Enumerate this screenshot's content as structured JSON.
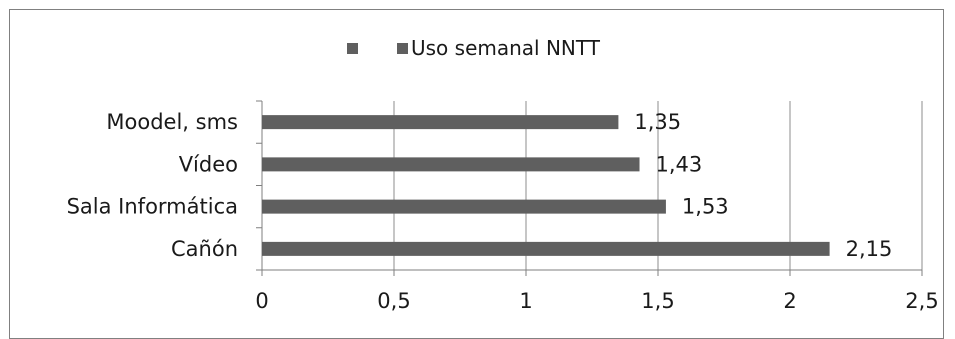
{
  "chart_data": {
    "type": "bar",
    "orientation": "horizontal",
    "categories": [
      "Moodel, sms",
      "Vídeo",
      "Sala Informática",
      "Cañón"
    ],
    "series": [
      {
        "name": "Uso semanal NNTT",
        "values": [
          1.35,
          1.43,
          1.53,
          2.15
        ],
        "value_labels": [
          "1,35",
          "1,43",
          "1,53",
          "2,15"
        ]
      }
    ],
    "xlim": [
      0,
      2.5
    ],
    "x_ticks": [
      "0",
      "0,5",
      "1",
      "1,5",
      "2",
      "2,5"
    ],
    "x_tick_values": [
      0,
      0.5,
      1,
      1.5,
      2,
      2.5
    ],
    "grid": "vertical",
    "legend_position": "top",
    "legend_items": [
      "",
      "Uso semanal NNTT"
    ],
    "colors": {
      "bar": "#5f5f5f",
      "grid": "#8c8c8c",
      "axis": "#7f7f7f",
      "border": "#808080"
    }
  }
}
